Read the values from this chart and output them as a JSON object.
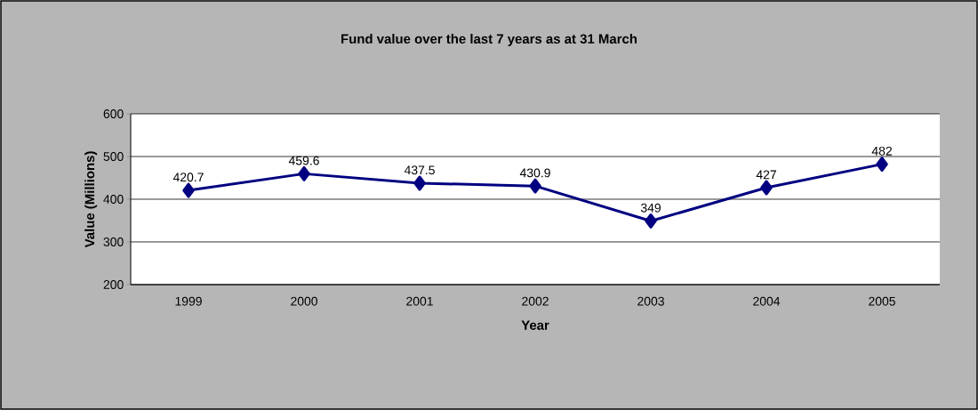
{
  "chart_data": {
    "type": "line",
    "title": "Fund value over the last 7 years as at 31 March",
    "xlabel": "Year",
    "ylabel": "Value (Millions)",
    "categories": [
      "1999",
      "2000",
      "2001",
      "2002",
      "2003",
      "2004",
      "2005"
    ],
    "series": [
      {
        "color": "#000080",
        "values": [
          420.7,
          459.6,
          437.5,
          430.9,
          349,
          427,
          482
        ]
      }
    ],
    "ylim": [
      200,
      600
    ],
    "yticks": [
      200,
      300,
      400,
      500,
      600
    ],
    "grid": "y",
    "marker": "diamond",
    "line_style": "solid",
    "data_labels": true
  }
}
